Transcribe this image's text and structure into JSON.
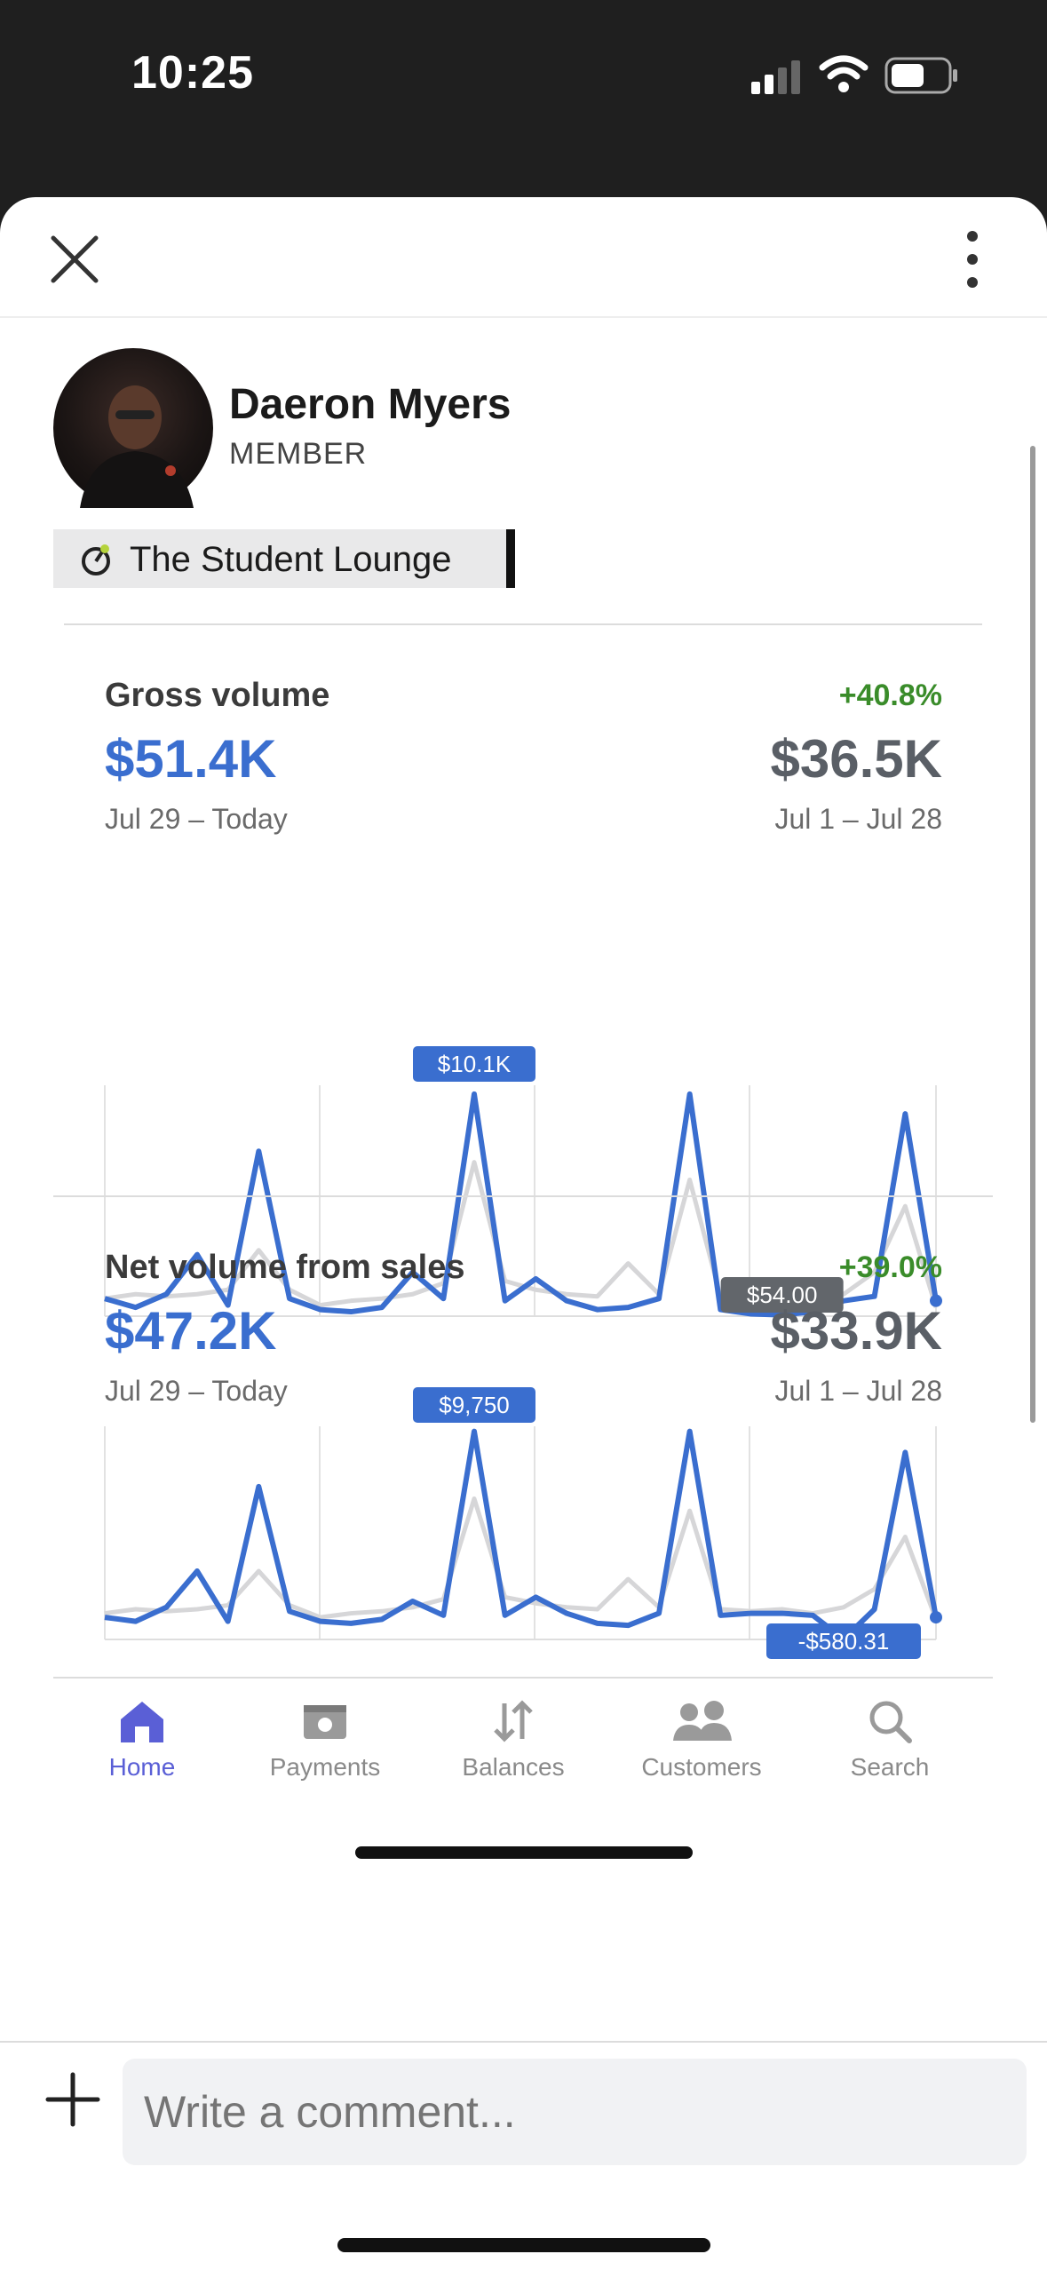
{
  "status_bar": {
    "time": "10:25"
  },
  "profile": {
    "name": "Daeron Myers",
    "role": "MEMBER",
    "group_label": "The Student Lounge"
  },
  "cards": [
    {
      "title": "Gross volume",
      "change": "+40.8%",
      "current_value": "$51.4K",
      "current_range": "Jul 29 – Today",
      "previous_value": "$36.5K",
      "previous_range": "Jul 1 – Jul 28",
      "tooltip_high": "$10.1K",
      "tooltip_low": "$54.00"
    },
    {
      "title": "Net volume from sales",
      "change": "+39.0%",
      "current_value": "$47.2K",
      "current_range": "Jul 29 – Today",
      "previous_value": "$33.9K",
      "previous_range": "Jul 1 – Jul 28",
      "tooltip_high": "$9,750",
      "tooltip_low": "-$580.31"
    }
  ],
  "chart_data": [
    {
      "type": "line",
      "title": "Gross volume",
      "x": [
        1,
        2,
        3,
        4,
        5,
        6,
        7,
        8,
        9,
        10,
        11,
        12,
        13,
        14,
        15,
        16,
        17,
        18,
        19,
        20,
        21,
        22,
        23,
        24,
        25,
        26,
        27,
        28
      ],
      "series": [
        {
          "values": [
            800,
            400,
            1000,
            2800,
            500,
            7500,
            800,
            300,
            200,
            400,
            2000,
            800,
            10100,
            700,
            1700,
            700,
            300,
            400,
            800,
            10100,
            300,
            100,
            54,
            200,
            700,
            900,
            9200,
            700
          ]
        },
        {
          "values": [
            800,
            1000,
            900,
            1000,
            1200,
            3000,
            1200,
            500,
            700,
            800,
            1000,
            1500,
            7000,
            1600,
            1200,
            1000,
            900,
            2400,
            1000,
            6200,
            900,
            800,
            900,
            700,
            1000,
            2000,
            5000,
            400
          ]
        }
      ],
      "ylim": [
        0,
        10500
      ],
      "grid": true,
      "annotations": [
        "$10.1K",
        "$54.00"
      ]
    },
    {
      "type": "line",
      "title": "Net volume from sales",
      "x": [
        1,
        2,
        3,
        4,
        5,
        6,
        7,
        8,
        9,
        10,
        11,
        12,
        13,
        14,
        15,
        16,
        17,
        18,
        19,
        20,
        21,
        22,
        23,
        24,
        25,
        26,
        27,
        28
      ],
      "series": [
        {
          "values": [
            500,
            300,
            1000,
            2800,
            300,
            7000,
            800,
            300,
            200,
            400,
            1300,
            600,
            9750,
            600,
            1500,
            700,
            200,
            100,
            700,
            9750,
            600,
            700,
            700,
            600,
            -580,
            900,
            8700,
            500
          ]
        },
        {
          "values": [
            700,
            900,
            800,
            900,
            1100,
            2800,
            1100,
            500,
            700,
            800,
            1000,
            1400,
            6400,
            1500,
            1200,
            1000,
            900,
            2400,
            1000,
            5800,
            900,
            800,
            900,
            700,
            1000,
            1900,
            4500,
            400
          ]
        }
      ],
      "ylim": [
        -600,
        10000
      ],
      "grid": true,
      "annotations": [
        "$9,750",
        "-$580.31"
      ]
    }
  ],
  "tabs": [
    {
      "label": "Home",
      "icon": "home-icon",
      "active": true
    },
    {
      "label": "Payments",
      "icon": "payments-icon"
    },
    {
      "label": "Balances",
      "icon": "balances-icon"
    },
    {
      "label": "Customers",
      "icon": "customers-icon"
    },
    {
      "label": "Search",
      "icon": "search-icon"
    }
  ],
  "comment": {
    "placeholder": "Write a comment..."
  },
  "colors": {
    "accent": "#3a6ecf",
    "positive": "#3a8c2a",
    "tab_active": "#5a5fd6"
  }
}
